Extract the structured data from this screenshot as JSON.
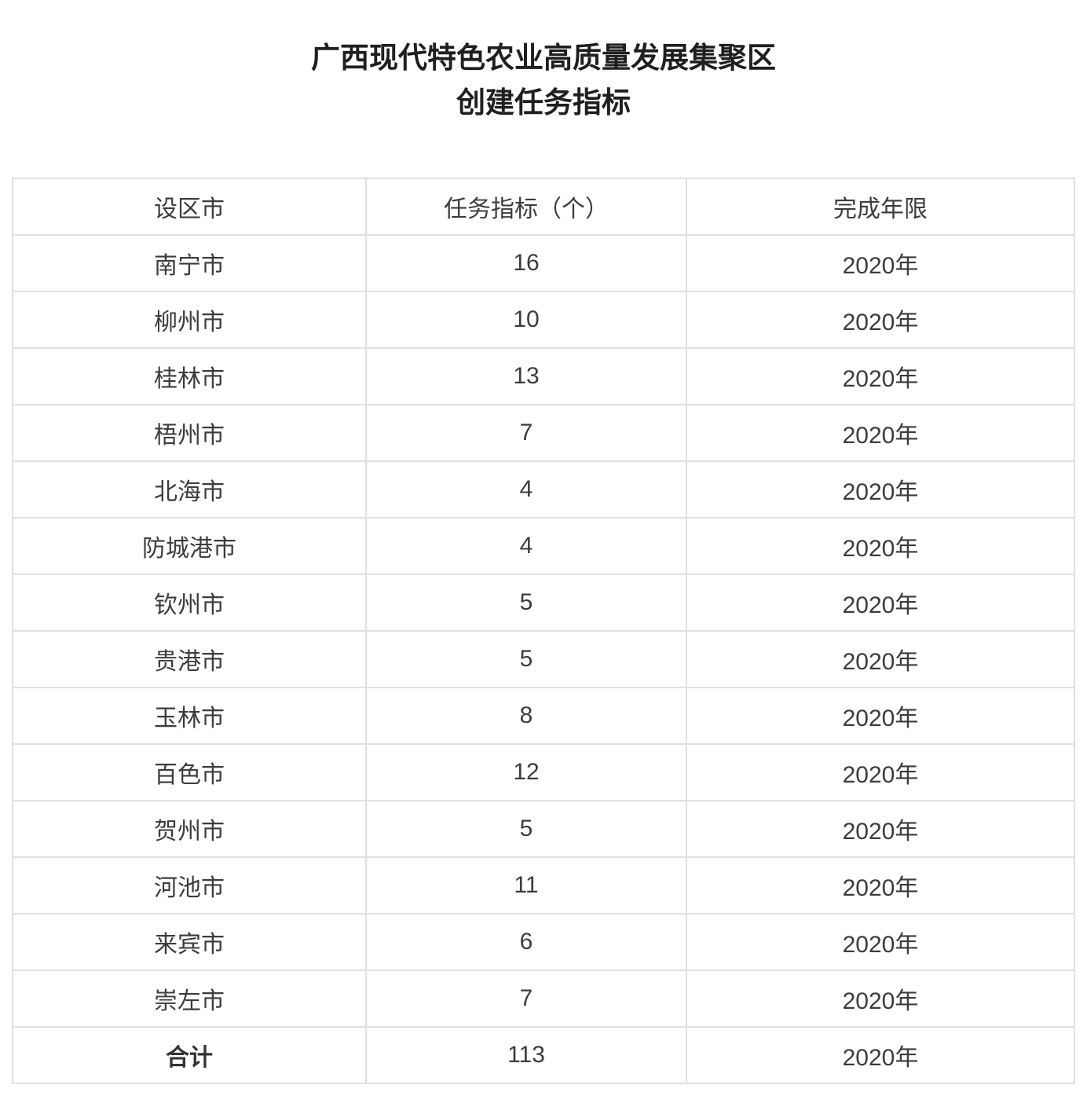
{
  "title": {
    "line1": "广西现代特色农业高质量发展集聚区",
    "line2": "创建任务指标"
  },
  "table": {
    "headers": [
      "设区市",
      "任务指标（个）",
      "完成年限"
    ],
    "rows": [
      {
        "city": "南宁市",
        "value": "16",
        "year": "2020年"
      },
      {
        "city": "柳州市",
        "value": "10",
        "year": "2020年"
      },
      {
        "city": "桂林市",
        "value": "13",
        "year": "2020年"
      },
      {
        "city": "梧州市",
        "value": "7",
        "year": "2020年"
      },
      {
        "city": "北海市",
        "value": "4",
        "year": "2020年"
      },
      {
        "city": "防城港市",
        "value": "4",
        "year": "2020年"
      },
      {
        "city": "钦州市",
        "value": "5",
        "year": "2020年"
      },
      {
        "city": "贵港市",
        "value": "5",
        "year": "2020年"
      },
      {
        "city": "玉林市",
        "value": "8",
        "year": "2020年"
      },
      {
        "city": "百色市",
        "value": "12",
        "year": "2020年"
      },
      {
        "city": "贺州市",
        "value": "5",
        "year": "2020年"
      },
      {
        "city": "河池市",
        "value": "11",
        "year": "2020年"
      },
      {
        "city": "来宾市",
        "value": "6",
        "year": "2020年"
      },
      {
        "city": "崇左市",
        "value": "7",
        "year": "2020年"
      },
      {
        "city": "合计",
        "value": "113",
        "year": "2020年"
      }
    ]
  },
  "colors": {
    "background": "#ffffff",
    "border": "#e0e0e0",
    "body_text": "#3c3c3c",
    "title_text": "#1f1f1f"
  }
}
